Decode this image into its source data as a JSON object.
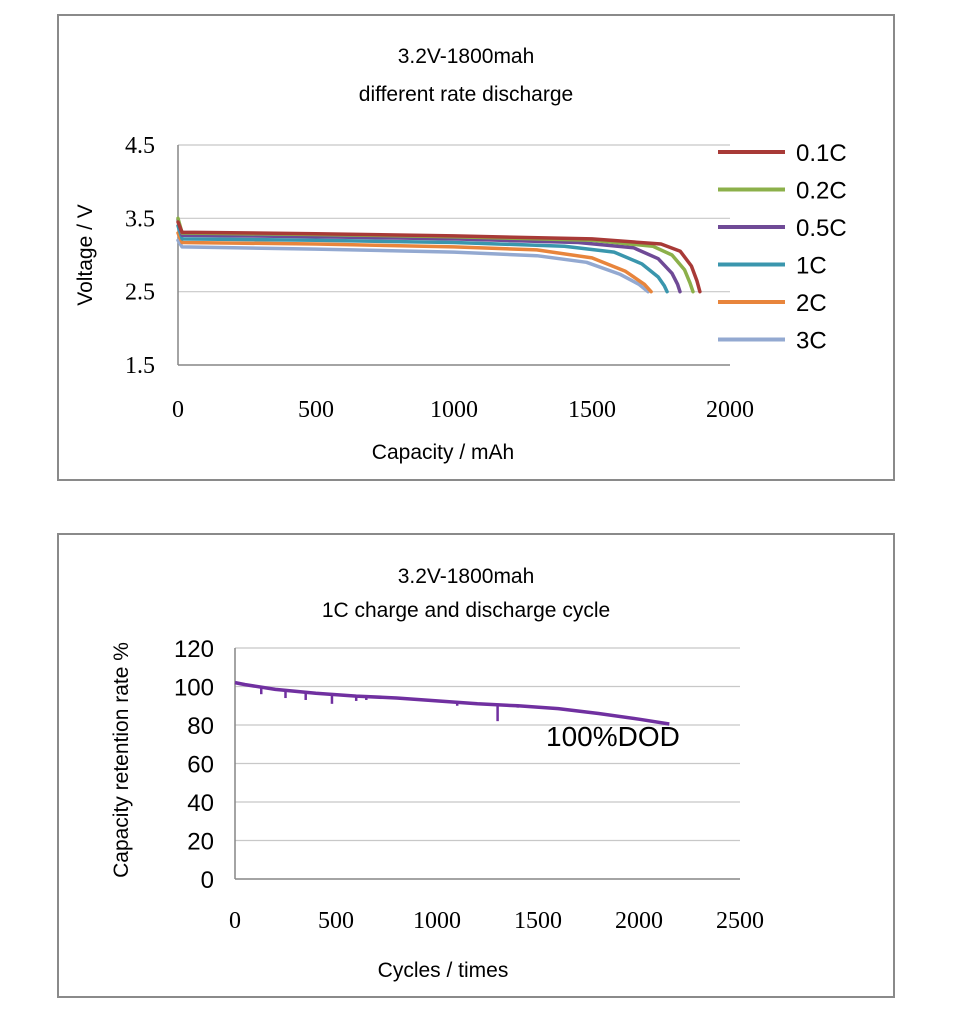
{
  "chart_data": [
    {
      "type": "line",
      "title": "3.2V-1800mah",
      "subtitle": "different rate discharge",
      "xlabel": "Capacity / mAh",
      "ylabel": "Voltage / V",
      "xlim": [
        0,
        2000
      ],
      "ylim": [
        1.5,
        4.5
      ],
      "xticks": [
        "0",
        "500",
        "1000",
        "1500",
        "2000"
      ],
      "yticks": [
        "4.5",
        "3.5",
        "2.5",
        "1.5"
      ],
      "ytick_values": [
        4.5,
        3.5,
        2.5,
        1.5
      ],
      "xtick_values": [
        0,
        500,
        1000,
        1500,
        2000
      ],
      "grid": true,
      "legend_position": "right",
      "series": [
        {
          "name": "0.1C",
          "color": "#a83a37",
          "x": [
            0,
            15,
            500,
            1000,
            1500,
            1750,
            1820,
            1860,
            1880,
            1891
          ],
          "y": [
            3.45,
            3.31,
            3.29,
            3.26,
            3.22,
            3.15,
            3.05,
            2.85,
            2.65,
            2.5
          ]
        },
        {
          "name": "0.2C",
          "color": "#8cb04a",
          "x": [
            0,
            15,
            500,
            1000,
            1500,
            1720,
            1790,
            1835,
            1855,
            1866
          ],
          "y": [
            3.5,
            3.3,
            3.28,
            3.25,
            3.2,
            3.12,
            3.0,
            2.8,
            2.62,
            2.5
          ]
        },
        {
          "name": "0.5C",
          "color": "#6f4a96",
          "x": [
            0,
            15,
            500,
            1000,
            1450,
            1650,
            1740,
            1790,
            1810,
            1819
          ],
          "y": [
            3.48,
            3.27,
            3.25,
            3.22,
            3.17,
            3.1,
            2.95,
            2.75,
            2.6,
            2.5
          ]
        },
        {
          "name": "1C",
          "color": "#3a96ad",
          "x": [
            0,
            15,
            500,
            1000,
            1400,
            1580,
            1680,
            1740,
            1762,
            1772
          ],
          "y": [
            3.4,
            3.22,
            3.2,
            3.17,
            3.12,
            3.04,
            2.88,
            2.7,
            2.58,
            2.5
          ]
        },
        {
          "name": "2C",
          "color": "#e8853c",
          "x": [
            0,
            15,
            500,
            1000,
            1300,
            1500,
            1620,
            1690,
            1714
          ],
          "y": [
            3.3,
            3.17,
            3.15,
            3.11,
            3.07,
            2.96,
            2.78,
            2.6,
            2.5
          ]
        },
        {
          "name": "3C",
          "color": "#93a9d1",
          "x": [
            0,
            15,
            500,
            1000,
            1300,
            1480,
            1600,
            1670,
            1703
          ],
          "y": [
            3.2,
            3.11,
            3.08,
            3.04,
            2.99,
            2.9,
            2.74,
            2.6,
            2.5
          ]
        }
      ]
    },
    {
      "type": "line",
      "title": "3.2V-1800mah",
      "subtitle": "1C charge and discharge cycle",
      "xlabel": "Cycles / times",
      "ylabel": "Capacity retention rate %",
      "xlim": [
        0,
        2500
      ],
      "ylim": [
        0,
        120
      ],
      "xticks": [
        "0",
        "500",
        "1000",
        "1500",
        "2000",
        "2500"
      ],
      "xtick_values": [
        0,
        500,
        1000,
        1500,
        2000,
        2500
      ],
      "yticks": [
        "120",
        "100",
        "80",
        "60",
        "40",
        "20",
        "0"
      ],
      "ytick_values": [
        120,
        100,
        80,
        60,
        40,
        20,
        0
      ],
      "grid": true,
      "annotation": "100%DOD",
      "series": [
        {
          "name": "100%DOD",
          "color": "#7030a0",
          "x": [
            0,
            50,
            200,
            400,
            600,
            800,
            1000,
            1200,
            1400,
            1600,
            1800,
            2000,
            2150
          ],
          "y": [
            102,
            101,
            98.5,
            96.5,
            95,
            94,
            92.5,
            91,
            90,
            88.5,
            86,
            83,
            80.5
          ],
          "dips": [
            [
              130,
              96
            ],
            [
              250,
              94
            ],
            [
              350,
              93
            ],
            [
              480,
              91
            ],
            [
              600,
              92.5
            ],
            [
              650,
              93
            ],
            [
              1100,
              90
            ],
            [
              1300,
              82
            ],
            [
              1400,
              89
            ],
            [
              1900,
              84
            ],
            [
              2000,
              82.5
            ]
          ]
        }
      ]
    }
  ]
}
